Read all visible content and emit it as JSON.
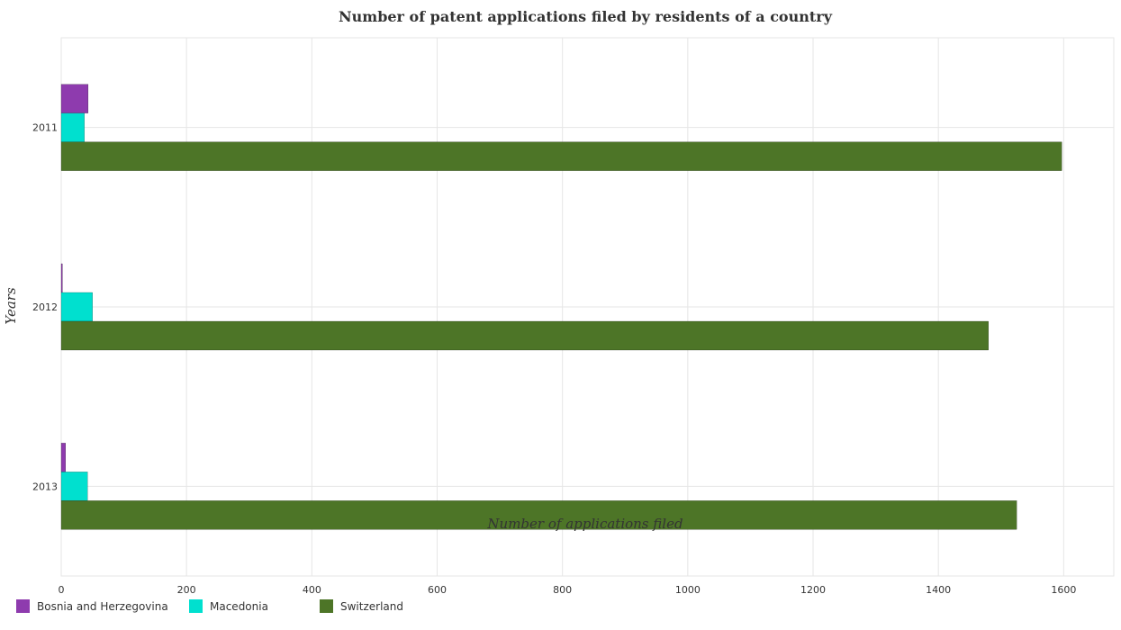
{
  "chart_data": {
    "type": "bar",
    "orientation": "horizontal",
    "title": "Number of patent applications filed by residents of a country",
    "xlabel": "Number of applications filed",
    "ylabel": "Years",
    "categories": [
      "2011",
      "2012",
      "2013"
    ],
    "series": [
      {
        "name": "Bosnia and Herzegovina",
        "color": "#8e3bae",
        "values": [
          43,
          2,
          7
        ]
      },
      {
        "name": "Macedonia",
        "color": "#00e0cf",
        "values": [
          37,
          50,
          42
        ]
      },
      {
        "name": "Switzerland",
        "color": "#4d7527",
        "values": [
          1597,
          1480,
          1525
        ]
      }
    ],
    "xlim": [
      0,
      1680
    ],
    "xticks": [
      0,
      200,
      400,
      600,
      800,
      1000,
      1200,
      1400,
      1600
    ],
    "grid": true,
    "legend_position": "bottom-left"
  }
}
